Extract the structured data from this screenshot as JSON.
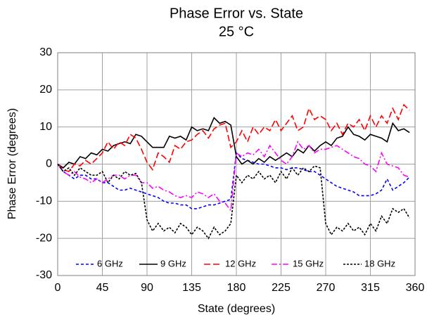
{
  "chart_data": {
    "type": "line",
    "title": "Phase Error vs. State",
    "subtitle": "25 °C",
    "x_label": "State (degrees)",
    "y_label": "Phase Error (degrees)",
    "x": [
      0,
      5.625,
      11.25,
      16.875,
      22.5,
      28.125,
      33.75,
      39.375,
      45,
      50.625,
      56.25,
      61.875,
      67.5,
      73.125,
      78.75,
      84.375,
      90,
      95.625,
      101.25,
      106.875,
      112.5,
      118.125,
      123.75,
      129.375,
      135,
      140.625,
      146.25,
      151.875,
      157.5,
      163.125,
      168.75,
      174.375,
      180,
      185.625,
      191.25,
      196.875,
      202.5,
      208.125,
      213.75,
      219.375,
      225,
      230.625,
      236.25,
      241.875,
      247.5,
      253.125,
      258.75,
      264.375,
      270,
      275.625,
      281.25,
      286.875,
      292.5,
      298.125,
      303.75,
      309.375,
      315,
      320.625,
      326.25,
      331.875,
      337.5,
      343.125,
      348.75,
      354.375
    ],
    "series": [
      {
        "name": "6 GHz",
        "color": "#0000ff",
        "dash": "4,3",
        "values": [
          0,
          -2,
          -3,
          -4,
          -3,
          -3,
          -4,
          -4,
          -5,
          -5,
          -6,
          -7,
          -7,
          -6.5,
          -7,
          -7.5,
          -8,
          -8.5,
          -9,
          -10,
          -10.5,
          -10.5,
          -11,
          -11,
          -12,
          -12,
          -11.5,
          -11,
          -11,
          -10.5,
          -10,
          -9.5,
          3,
          1.5,
          1,
          0.5,
          0,
          0,
          -0.5,
          -1,
          -1,
          -1.5,
          -1,
          -1,
          -1.5,
          -2,
          -2,
          -3,
          -4,
          -5,
          -6,
          -6.5,
          -7,
          -7.5,
          -8.5,
          -8.5,
          -8.5,
          -8,
          -7,
          -4,
          -7,
          -6,
          -5,
          -3.5
        ]
      },
      {
        "name": "9 GHz",
        "color": "#000000",
        "dash": "none",
        "values": [
          0,
          -1,
          0.5,
          0,
          2,
          1.5,
          3,
          2.5,
          4,
          3.5,
          5,
          5.5,
          6,
          5.5,
          8,
          7.5,
          6,
          4.5,
          4.5,
          4.5,
          7.5,
          7,
          7.5,
          6.5,
          10,
          9,
          9.5,
          9,
          12.5,
          11,
          11.5,
          10.5,
          2,
          0,
          1,
          0,
          1.5,
          0.5,
          2,
          1,
          2,
          3,
          2,
          4,
          3,
          5,
          3.5,
          5,
          6,
          5,
          7,
          7.5,
          10,
          8,
          7.5,
          6.5,
          8,
          7.5,
          7,
          6,
          11,
          9,
          9.5,
          8.5
        ]
      },
      {
        "name": "12 GHz",
        "color": "#ff0000",
        "dash": "9,4",
        "values": [
          0,
          -1.5,
          -2,
          0,
          -0.5,
          1,
          0,
          1.5,
          3,
          6,
          4,
          6,
          5,
          8,
          7,
          4,
          0.5,
          -1.5,
          3,
          2,
          0.5,
          5,
          4,
          6,
          6.5,
          8,
          9,
          7,
          9.5,
          10.5,
          11,
          4.5,
          6,
          9,
          6,
          10,
          8,
          10,
          9,
          12,
          9,
          11,
          13,
          9,
          10,
          15,
          12,
          13,
          12,
          9,
          11,
          8,
          11,
          10,
          12,
          9,
          13,
          10,
          13,
          11,
          15,
          12,
          16,
          14.5
        ]
      },
      {
        "name": "15 GHz",
        "color": "#ff00ff",
        "dash": "8,3,2,3",
        "values": [
          0,
          -2,
          -3,
          -2,
          -3.5,
          -4,
          -5,
          -4,
          -5,
          -4,
          -3,
          -3,
          -4,
          -3,
          -3,
          -5,
          -5,
          -6.5,
          -6,
          -7,
          -7.5,
          -8.5,
          -9,
          -8.5,
          -9,
          -7.5,
          -8,
          -9,
          -8,
          -10,
          -10.5,
          -12.5,
          3,
          2,
          3,
          2.5,
          4,
          2,
          5,
          3,
          1,
          0,
          2,
          6,
          4,
          5,
          3,
          4,
          4,
          4.5,
          5,
          4,
          3,
          2,
          1.5,
          0,
          -0.5,
          -2,
          3,
          0,
          -0.5,
          -1,
          -3,
          -3.5
        ]
      },
      {
        "name": "18 GHz",
        "color": "#000000",
        "dash": "3,2",
        "values": [
          0,
          -2,
          -1,
          -3,
          -1,
          -2,
          -3,
          -3,
          -2,
          -5,
          -3,
          -4,
          -2,
          -3,
          -2.5,
          -5,
          -15,
          -18,
          -16,
          -18,
          -17,
          -18.5,
          -16,
          -17,
          -19,
          -17,
          -18,
          -20,
          -17,
          -19,
          -18,
          -16,
          -3,
          -5,
          -3,
          -4,
          -2,
          -4,
          -3,
          -5,
          -2,
          -4,
          -1,
          -3,
          -1,
          -2,
          -0.5,
          -1,
          -16,
          -19,
          -17,
          -18,
          -16,
          -18,
          -17,
          -19,
          -16,
          -18,
          -14,
          -16,
          -12,
          -13,
          -12,
          -14.5
        ]
      }
    ],
    "xlim": [
      0,
      360
    ],
    "xticks": [
      0,
      45,
      90,
      135,
      180,
      225,
      270,
      315,
      360
    ],
    "ylim": [
      -30,
      30
    ],
    "yticks": [
      -30,
      -20,
      -10,
      0,
      10,
      20,
      30
    ],
    "grid": true,
    "legend": "bottom"
  }
}
